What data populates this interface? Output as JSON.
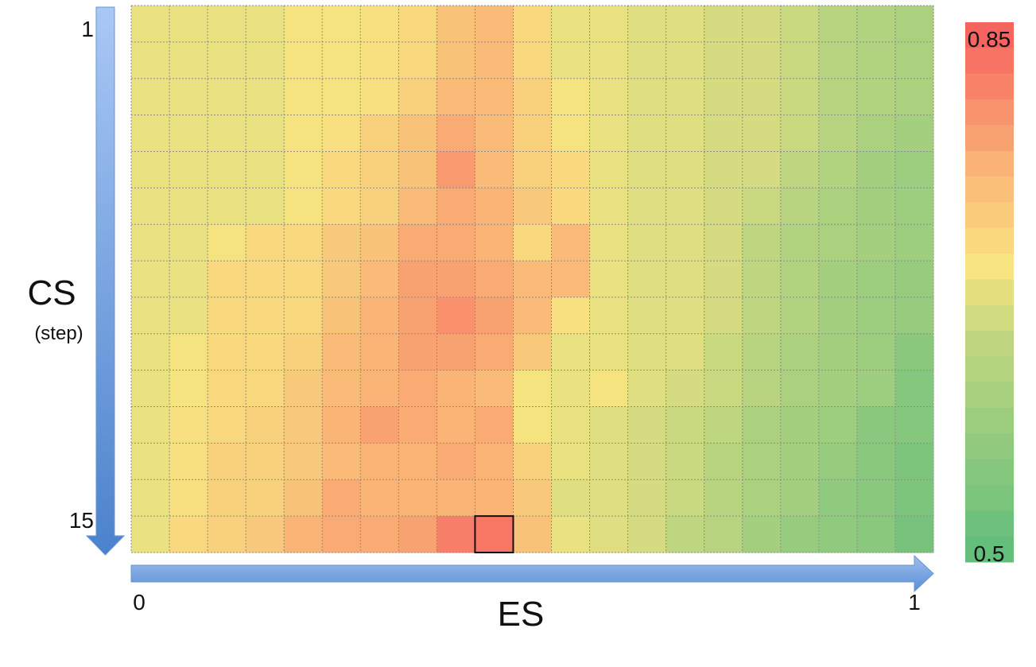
{
  "chart_data": {
    "type": "heatmap",
    "xlabel": "ES",
    "ylabel": "CS",
    "ylabel_sub": "(step)",
    "x_tick_start": "0",
    "x_tick_end": "1",
    "y_tick_start": "1",
    "y_tick_end": "15",
    "colorbar_max_label": "0.85",
    "colorbar_min_label": "0.5",
    "color_range": [
      0.5,
      0.85
    ],
    "rows": 15,
    "cols": 21,
    "highlight_cell": {
      "row": 15,
      "col": 10
    },
    "values": [
      [
        0.68,
        0.68,
        0.68,
        0.68,
        0.69,
        0.69,
        0.7,
        0.71,
        0.74,
        0.75,
        0.71,
        0.68,
        0.68,
        0.67,
        0.67,
        0.66,
        0.66,
        0.65,
        0.63,
        0.62,
        0.61
      ],
      [
        0.68,
        0.68,
        0.68,
        0.68,
        0.69,
        0.69,
        0.7,
        0.71,
        0.74,
        0.75,
        0.71,
        0.68,
        0.68,
        0.67,
        0.67,
        0.66,
        0.66,
        0.65,
        0.63,
        0.62,
        0.61
      ],
      [
        0.68,
        0.68,
        0.68,
        0.68,
        0.69,
        0.69,
        0.7,
        0.72,
        0.75,
        0.75,
        0.72,
        0.69,
        0.68,
        0.67,
        0.67,
        0.66,
        0.66,
        0.65,
        0.63,
        0.62,
        0.61
      ],
      [
        0.68,
        0.68,
        0.68,
        0.68,
        0.69,
        0.7,
        0.72,
        0.74,
        0.77,
        0.75,
        0.72,
        0.69,
        0.68,
        0.67,
        0.67,
        0.66,
        0.66,
        0.65,
        0.63,
        0.61,
        0.6
      ],
      [
        0.68,
        0.68,
        0.68,
        0.68,
        0.69,
        0.71,
        0.72,
        0.74,
        0.79,
        0.75,
        0.72,
        0.71,
        0.68,
        0.67,
        0.67,
        0.66,
        0.66,
        0.64,
        0.62,
        0.6,
        0.59
      ],
      [
        0.68,
        0.68,
        0.68,
        0.68,
        0.69,
        0.71,
        0.72,
        0.75,
        0.77,
        0.76,
        0.73,
        0.71,
        0.68,
        0.67,
        0.67,
        0.66,
        0.65,
        0.63,
        0.61,
        0.6,
        0.59
      ],
      [
        0.68,
        0.68,
        0.69,
        0.71,
        0.71,
        0.73,
        0.74,
        0.77,
        0.77,
        0.76,
        0.71,
        0.75,
        0.68,
        0.67,
        0.67,
        0.66,
        0.64,
        0.62,
        0.61,
        0.6,
        0.59
      ],
      [
        0.68,
        0.68,
        0.71,
        0.71,
        0.71,
        0.73,
        0.75,
        0.78,
        0.78,
        0.77,
        0.75,
        0.75,
        0.68,
        0.67,
        0.67,
        0.66,
        0.64,
        0.62,
        0.6,
        0.59,
        0.58
      ],
      [
        0.68,
        0.68,
        0.71,
        0.71,
        0.71,
        0.74,
        0.76,
        0.78,
        0.8,
        0.78,
        0.75,
        0.7,
        0.68,
        0.67,
        0.67,
        0.66,
        0.64,
        0.62,
        0.6,
        0.59,
        0.58
      ],
      [
        0.68,
        0.69,
        0.71,
        0.71,
        0.72,
        0.75,
        0.76,
        0.78,
        0.78,
        0.77,
        0.73,
        0.68,
        0.68,
        0.67,
        0.67,
        0.65,
        0.63,
        0.61,
        0.6,
        0.59,
        0.56
      ],
      [
        0.68,
        0.69,
        0.71,
        0.71,
        0.73,
        0.75,
        0.76,
        0.77,
        0.76,
        0.75,
        0.69,
        0.68,
        0.69,
        0.67,
        0.66,
        0.65,
        0.63,
        0.61,
        0.6,
        0.59,
        0.55
      ],
      [
        0.68,
        0.7,
        0.71,
        0.72,
        0.73,
        0.76,
        0.78,
        0.77,
        0.76,
        0.77,
        0.69,
        0.68,
        0.67,
        0.66,
        0.65,
        0.64,
        0.61,
        0.6,
        0.59,
        0.56,
        0.55
      ],
      [
        0.68,
        0.7,
        0.72,
        0.72,
        0.73,
        0.75,
        0.76,
        0.76,
        0.77,
        0.76,
        0.72,
        0.68,
        0.67,
        0.66,
        0.65,
        0.63,
        0.61,
        0.6,
        0.58,
        0.56,
        0.54
      ],
      [
        0.68,
        0.7,
        0.72,
        0.72,
        0.74,
        0.77,
        0.76,
        0.76,
        0.76,
        0.76,
        0.73,
        0.67,
        0.67,
        0.66,
        0.65,
        0.63,
        0.61,
        0.6,
        0.57,
        0.56,
        0.54
      ],
      [
        0.68,
        0.71,
        0.72,
        0.73,
        0.76,
        0.77,
        0.77,
        0.78,
        0.82,
        0.83,
        0.74,
        0.68,
        0.67,
        0.66,
        0.64,
        0.63,
        0.6,
        0.58,
        0.57,
        0.56,
        0.53
      ]
    ]
  }
}
